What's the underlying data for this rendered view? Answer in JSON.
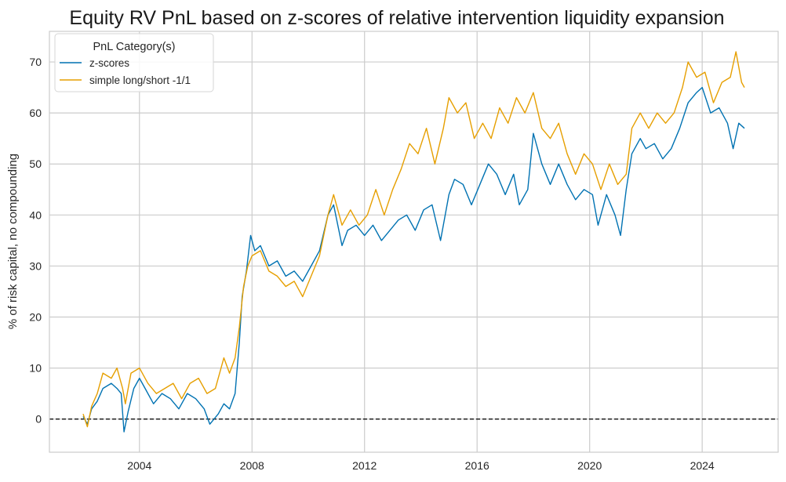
{
  "chart_data": {
    "type": "line",
    "title": "Equity RV PnL based on z-scores of relative intervention liquidity expansion",
    "xlabel": "",
    "ylabel": "% of risk capital, no compounding",
    "xlim": [
      2000.8,
      2026.7
    ],
    "ylim": [
      -6.5,
      76
    ],
    "x_ticks": [
      2004,
      2008,
      2012,
      2016,
      2020,
      2024
    ],
    "x_tick_labels": [
      "2004",
      "2008",
      "2012",
      "2016",
      "2020",
      "2024"
    ],
    "y_ticks": [
      0,
      10,
      20,
      30,
      40,
      50,
      60,
      70
    ],
    "y_tick_labels": [
      "0",
      "10",
      "20",
      "30",
      "40",
      "50",
      "60",
      "70"
    ],
    "grid": true,
    "zero_line": true,
    "legend": {
      "title": "PnL Category(s)",
      "placement": "top-left"
    },
    "series": [
      {
        "name": "z-scores",
        "color": "#0072b2",
        "points": [
          [
            2002.0,
            0.5
          ],
          [
            2002.15,
            -1.0
          ],
          [
            2002.3,
            2.0
          ],
          [
            2002.5,
            3.5
          ],
          [
            2002.7,
            6.0
          ],
          [
            2003.0,
            7.0
          ],
          [
            2003.2,
            6.0
          ],
          [
            2003.35,
            5.0
          ],
          [
            2003.45,
            -2.5
          ],
          [
            2003.6,
            1.5
          ],
          [
            2003.8,
            6.0
          ],
          [
            2004.0,
            8.0
          ],
          [
            2004.2,
            6.0
          ],
          [
            2004.5,
            3.0
          ],
          [
            2004.8,
            5.0
          ],
          [
            2005.1,
            4.0
          ],
          [
            2005.4,
            2.0
          ],
          [
            2005.7,
            5.0
          ],
          [
            2006.0,
            4.0
          ],
          [
            2006.3,
            2.0
          ],
          [
            2006.5,
            -1.0
          ],
          [
            2006.8,
            1.0
          ],
          [
            2007.0,
            3.0
          ],
          [
            2007.2,
            2.0
          ],
          [
            2007.4,
            5.0
          ],
          [
            2007.55,
            15.0
          ],
          [
            2007.65,
            24.0
          ],
          [
            2007.8,
            29.0
          ],
          [
            2007.95,
            36.0
          ],
          [
            2008.1,
            33.0
          ],
          [
            2008.3,
            34.0
          ],
          [
            2008.6,
            30.0
          ],
          [
            2008.9,
            31.0
          ],
          [
            2009.2,
            28.0
          ],
          [
            2009.5,
            29.0
          ],
          [
            2009.8,
            27.0
          ],
          [
            2010.1,
            30.0
          ],
          [
            2010.4,
            33.0
          ],
          [
            2010.7,
            40.0
          ],
          [
            2010.9,
            42.0
          ],
          [
            2011.2,
            34.0
          ],
          [
            2011.4,
            37.0
          ],
          [
            2011.7,
            38.0
          ],
          [
            2012.0,
            36.0
          ],
          [
            2012.3,
            38.0
          ],
          [
            2012.6,
            35.0
          ],
          [
            2012.9,
            37.0
          ],
          [
            2013.2,
            39.0
          ],
          [
            2013.5,
            40.0
          ],
          [
            2013.8,
            37.0
          ],
          [
            2014.1,
            41.0
          ],
          [
            2014.4,
            42.0
          ],
          [
            2014.7,
            35.0
          ],
          [
            2015.0,
            44.0
          ],
          [
            2015.2,
            47.0
          ],
          [
            2015.5,
            46.0
          ],
          [
            2015.8,
            42.0
          ],
          [
            2016.1,
            46.0
          ],
          [
            2016.4,
            50.0
          ],
          [
            2016.7,
            48.0
          ],
          [
            2017.0,
            44.0
          ],
          [
            2017.3,
            48.0
          ],
          [
            2017.5,
            42.0
          ],
          [
            2017.8,
            45.0
          ],
          [
            2018.0,
            56.0
          ],
          [
            2018.3,
            50.0
          ],
          [
            2018.6,
            46.0
          ],
          [
            2018.9,
            50.0
          ],
          [
            2019.2,
            46.0
          ],
          [
            2019.5,
            43.0
          ],
          [
            2019.8,
            45.0
          ],
          [
            2020.1,
            44.0
          ],
          [
            2020.3,
            38.0
          ],
          [
            2020.6,
            44.0
          ],
          [
            2020.9,
            40.0
          ],
          [
            2021.1,
            36.0
          ],
          [
            2021.3,
            45.0
          ],
          [
            2021.5,
            52.0
          ],
          [
            2021.8,
            55.0
          ],
          [
            2022.0,
            53.0
          ],
          [
            2022.3,
            54.0
          ],
          [
            2022.6,
            51.0
          ],
          [
            2022.9,
            53.0
          ],
          [
            2023.2,
            57.0
          ],
          [
            2023.5,
            62.0
          ],
          [
            2023.8,
            64.0
          ],
          [
            2024.0,
            65.0
          ],
          [
            2024.3,
            60.0
          ],
          [
            2024.6,
            61.0
          ],
          [
            2024.9,
            58.0
          ],
          [
            2025.1,
            53.0
          ],
          [
            2025.3,
            58.0
          ],
          [
            2025.5,
            57.0
          ]
        ]
      },
      {
        "name": "simple long/short -1/1",
        "color": "#e69f00",
        "points": [
          [
            2002.0,
            1.0
          ],
          [
            2002.15,
            -1.5
          ],
          [
            2002.3,
            2.5
          ],
          [
            2002.5,
            5.0
          ],
          [
            2002.7,
            9.0
          ],
          [
            2003.0,
            8.0
          ],
          [
            2003.2,
            10.0
          ],
          [
            2003.4,
            6.0
          ],
          [
            2003.5,
            3.0
          ],
          [
            2003.7,
            9.0
          ],
          [
            2004.0,
            10.0
          ],
          [
            2004.3,
            7.0
          ],
          [
            2004.6,
            5.0
          ],
          [
            2004.9,
            6.0
          ],
          [
            2005.2,
            7.0
          ],
          [
            2005.5,
            4.0
          ],
          [
            2005.8,
            7.0
          ],
          [
            2006.1,
            8.0
          ],
          [
            2006.4,
            5.0
          ],
          [
            2006.7,
            6.0
          ],
          [
            2007.0,
            12.0
          ],
          [
            2007.2,
            9.0
          ],
          [
            2007.4,
            12.0
          ],
          [
            2007.55,
            18.0
          ],
          [
            2007.7,
            26.0
          ],
          [
            2007.85,
            30.0
          ],
          [
            2008.0,
            32.0
          ],
          [
            2008.3,
            33.0
          ],
          [
            2008.6,
            29.0
          ],
          [
            2008.9,
            28.0
          ],
          [
            2009.2,
            26.0
          ],
          [
            2009.5,
            27.0
          ],
          [
            2009.8,
            24.0
          ],
          [
            2010.1,
            28.0
          ],
          [
            2010.4,
            32.0
          ],
          [
            2010.7,
            40.0
          ],
          [
            2010.9,
            44.0
          ],
          [
            2011.2,
            38.0
          ],
          [
            2011.5,
            41.0
          ],
          [
            2011.8,
            38.0
          ],
          [
            2012.1,
            40.0
          ],
          [
            2012.4,
            45.0
          ],
          [
            2012.7,
            40.0
          ],
          [
            2013.0,
            45.0
          ],
          [
            2013.3,
            49.0
          ],
          [
            2013.6,
            54.0
          ],
          [
            2013.9,
            52.0
          ],
          [
            2014.2,
            57.0
          ],
          [
            2014.5,
            50.0
          ],
          [
            2014.8,
            57.0
          ],
          [
            2015.0,
            63.0
          ],
          [
            2015.3,
            60.0
          ],
          [
            2015.6,
            62.0
          ],
          [
            2015.9,
            55.0
          ],
          [
            2016.2,
            58.0
          ],
          [
            2016.5,
            55.0
          ],
          [
            2016.8,
            61.0
          ],
          [
            2017.1,
            58.0
          ],
          [
            2017.4,
            63.0
          ],
          [
            2017.7,
            60.0
          ],
          [
            2018.0,
            64.0
          ],
          [
            2018.3,
            57.0
          ],
          [
            2018.6,
            55.0
          ],
          [
            2018.9,
            58.0
          ],
          [
            2019.2,
            52.0
          ],
          [
            2019.5,
            48.0
          ],
          [
            2019.8,
            52.0
          ],
          [
            2020.1,
            50.0
          ],
          [
            2020.4,
            45.0
          ],
          [
            2020.7,
            50.0
          ],
          [
            2021.0,
            46.0
          ],
          [
            2021.3,
            48.0
          ],
          [
            2021.5,
            57.0
          ],
          [
            2021.8,
            60.0
          ],
          [
            2022.1,
            57.0
          ],
          [
            2022.4,
            60.0
          ],
          [
            2022.7,
            58.0
          ],
          [
            2023.0,
            60.0
          ],
          [
            2023.3,
            65.0
          ],
          [
            2023.5,
            70.0
          ],
          [
            2023.8,
            67.0
          ],
          [
            2024.1,
            68.0
          ],
          [
            2024.4,
            62.0
          ],
          [
            2024.7,
            66.0
          ],
          [
            2025.0,
            67.0
          ],
          [
            2025.2,
            72.0
          ],
          [
            2025.4,
            66.0
          ],
          [
            2025.5,
            65.0
          ]
        ]
      }
    ]
  }
}
